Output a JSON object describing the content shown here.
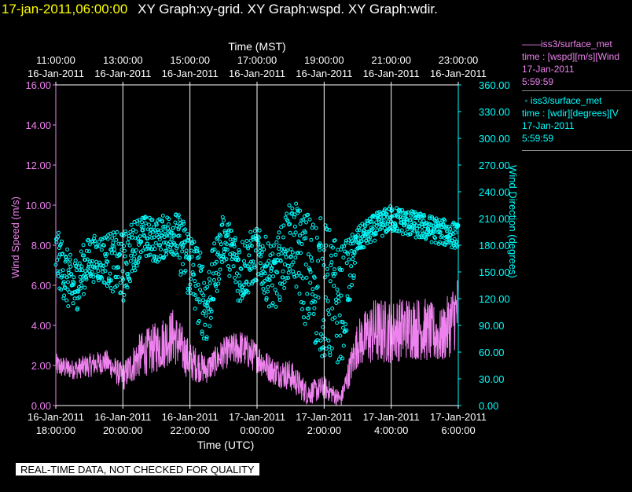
{
  "header": {
    "datetime": "17-jan-2011,06:00:00",
    "title": "XY Graph:xy-grid.  XY Graph:wspd.  XY Graph:wdir."
  },
  "legend": [
    {
      "line1": "iss3/surface_met",
      "line2": "time : [wspd][m/s][Wind",
      "line3": "17-Jan-2011",
      "line4": "5:59:59",
      "marker": "line",
      "color": "#ee82ee"
    },
    {
      "line1": "iss3/surface_met",
      "line2": "time : [wdir][degrees][V",
      "line3": "17-Jan-2011",
      "line4": "5:59:59",
      "marker": "circle",
      "color": "#00ffff"
    }
  ],
  "quality_banner": "REAL-TIME DATA, NOT CHECKED FOR QUALITY",
  "chart_data": {
    "type": "scatter",
    "x_bottom": {
      "label": "Time (UTC)",
      "ticks": [
        {
          "date": "16-Jan-2011",
          "time": "18:00:00"
        },
        {
          "date": "16-Jan-2011",
          "time": "20:00:00"
        },
        {
          "date": "16-Jan-2011",
          "time": "22:00:00"
        },
        {
          "date": "17-Jan-2011",
          "time": "0:00:00"
        },
        {
          "date": "17-Jan-2011",
          "time": "2:00:00"
        },
        {
          "date": "17-Jan-2011",
          "time": "4:00:00"
        },
        {
          "date": "17-Jan-2011",
          "time": "6:00:00"
        }
      ],
      "range": [
        "16-Jan-2011 18:00:00",
        "17-Jan-2011 06:00:00"
      ]
    },
    "x_top": {
      "label": "Time (MST)",
      "ticks": [
        {
          "date": "16-Jan-2011",
          "time": "11:00:00"
        },
        {
          "date": "16-Jan-2011",
          "time": "13:00:00"
        },
        {
          "date": "16-Jan-2011",
          "time": "15:00:00"
        },
        {
          "date": "16-Jan-2011",
          "time": "17:00:00"
        },
        {
          "date": "16-Jan-2011",
          "time": "19:00:00"
        },
        {
          "date": "16-Jan-2011",
          "time": "21:00:00"
        },
        {
          "date": "16-Jan-2011",
          "time": "23:00:00"
        }
      ]
    },
    "y_left": {
      "label": "Wind Speed (m/s)",
      "range": [
        0,
        16
      ],
      "ticks": [
        "0.00",
        "2.00",
        "4.00",
        "6.00",
        "8.00",
        "10.00",
        "12.00",
        "14.00",
        "16.00"
      ],
      "color": "#ee82ee"
    },
    "y_right": {
      "label": "Wind Direction (degrees)",
      "range": [
        0,
        360
      ],
      "ticks": [
        "0.00",
        "30.00",
        "60.00",
        "90.00",
        "120.00",
        "150.00",
        "180.00",
        "210.00",
        "240.00",
        "270.00",
        "300.00",
        "330.00",
        "360.00"
      ],
      "color": "#00ffff"
    },
    "grid": "vertical",
    "series": [
      {
        "name": "iss3/surface_met wspd",
        "axis": "left",
        "style": "line",
        "color": "#ee82ee",
        "x": [
          "16-Jan-2011 18:00",
          "16-Jan-2011 18:30",
          "16-Jan-2011 19:00",
          "16-Jan-2011 19:30",
          "16-Jan-2011 20:00",
          "16-Jan-2011 20:30",
          "16-Jan-2011 21:00",
          "16-Jan-2011 21:30",
          "16-Jan-2011 22:00",
          "16-Jan-2011 22:30",
          "16-Jan-2011 23:00",
          "16-Jan-2011 23:30",
          "17-Jan-2011 00:00",
          "17-Jan-2011 00:30",
          "17-Jan-2011 01:00",
          "17-Jan-2011 01:30",
          "17-Jan-2011 02:00",
          "17-Jan-2011 02:30",
          "17-Jan-2011 03:00",
          "17-Jan-2011 03:30",
          "17-Jan-2011 04:00",
          "17-Jan-2011 04:30",
          "17-Jan-2011 05:00",
          "17-Jan-2011 05:30",
          "17-Jan-2011 06:00"
        ],
        "y": [
          2.0,
          1.8,
          2.0,
          2.2,
          1.4,
          2.5,
          2.9,
          3.5,
          2.2,
          1.8,
          2.6,
          2.9,
          2.4,
          1.7,
          1.5,
          0.6,
          0.9,
          0.3,
          3.1,
          3.7,
          3.7,
          3.9,
          3.8,
          3.4,
          4.8
        ],
        "spread": [
          0.6,
          0.5,
          0.6,
          0.6,
          0.7,
          1.1,
          1.3,
          1.4,
          1.0,
          0.7,
          0.8,
          0.9,
          0.8,
          0.7,
          0.8,
          0.6,
          0.6,
          0.4,
          1.2,
          1.7,
          1.6,
          1.6,
          1.6,
          1.4,
          1.9
        ]
      },
      {
        "name": "iss3/surface_met wdir",
        "axis": "right",
        "style": "circle",
        "color": "#00ffff",
        "x": [
          "16-Jan-2011 18:00",
          "16-Jan-2011 18:30",
          "16-Jan-2011 19:00",
          "16-Jan-2011 19:30",
          "16-Jan-2011 20:00",
          "16-Jan-2011 20:30",
          "16-Jan-2011 21:00",
          "16-Jan-2011 21:30",
          "16-Jan-2011 22:00",
          "16-Jan-2011 22:30",
          "16-Jan-2011 23:00",
          "16-Jan-2011 23:30",
          "17-Jan-2011 00:00",
          "17-Jan-2011 00:30",
          "17-Jan-2011 01:00",
          "17-Jan-2011 01:30",
          "17-Jan-2011 02:00",
          "17-Jan-2011 02:30",
          "17-Jan-2011 03:00",
          "17-Jan-2011 03:30",
          "17-Jan-2011 04:00",
          "17-Jan-2011 04:30",
          "17-Jan-2011 05:00",
          "17-Jan-2011 05:30",
          "17-Jan-2011 06:00"
        ],
        "y": [
          170,
          130,
          165,
          165,
          155,
          190,
          185,
          195,
          160,
          110,
          190,
          150,
          170,
          140,
          190,
          150,
          130,
          110,
          185,
          200,
          210,
          205,
          200,
          195,
          190
        ],
        "spread": [
          30,
          35,
          25,
          30,
          40,
          25,
          25,
          25,
          45,
          45,
          25,
          40,
          30,
          40,
          40,
          70,
          80,
          70,
          15,
          15,
          15,
          15,
          15,
          15,
          15
        ]
      }
    ]
  }
}
